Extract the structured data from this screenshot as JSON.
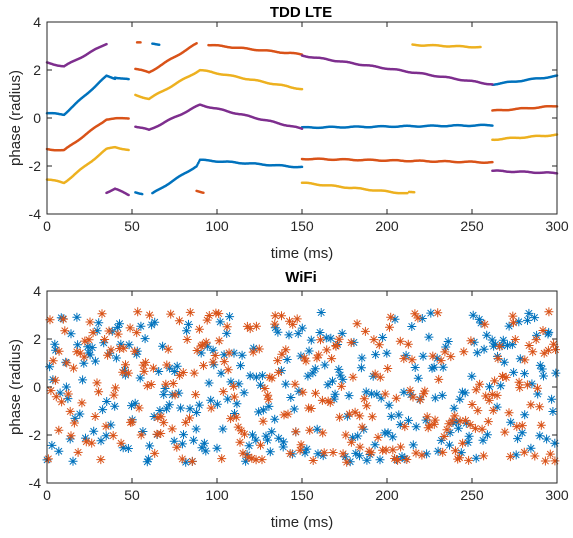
{
  "chart_data": [
    {
      "type": "scatter",
      "title": "TDD LTE",
      "xlabel": "time (ms)",
      "ylabel": "phase (radius)",
      "xlim": [
        0,
        300
      ],
      "ylim": [
        -4,
        4
      ],
      "xticks": [
        0,
        50,
        100,
        150,
        200,
        250,
        300
      ],
      "yticks": [
        -4,
        -2,
        0,
        2,
        4
      ],
      "grid": false,
      "marker": "dot",
      "series": [
        {
          "color": "#0072BD",
          "segments": [
            [
              [
                0,
                0.2
              ],
              [
                10,
                0.15
              ],
              [
                35,
                1.75
              ],
              [
                40,
                1.65
              ]
            ],
            [
              [
                40,
                1.7
              ],
              [
                48,
                1.6
              ]
            ],
            [
              [
                52,
                -3.1
              ],
              [
                56,
                -3.15
              ]
            ],
            [
              [
                62,
                -3.15
              ],
              [
                88,
                -2.0
              ],
              [
                90,
                -1.75
              ],
              [
                150,
                -2.05
              ]
            ],
            [
              [
                150,
                -0.4
              ],
              [
                262,
                -0.3
              ]
            ],
            [
              [
                262,
                1.4
              ],
              [
                300,
                1.75
              ]
            ]
          ]
        },
        {
          "color": "#D95319",
          "segments": [
            [
              [
                0,
                -1.3
              ],
              [
                10,
                -1.35
              ],
              [
                35,
                -0.05
              ],
              [
                48,
                0.0
              ]
            ],
            [
              [
                52,
                2.05
              ],
              [
                60,
                1.9
              ],
              [
                88,
                3.1
              ]
            ],
            [
              [
                88,
                -3.05
              ],
              [
                92,
                -3.1
              ]
            ],
            [
              [
                95,
                3.05
              ],
              [
                150,
                2.65
              ]
            ],
            [
              [
                150,
                -1.7
              ],
              [
                262,
                -1.85
              ]
            ],
            [
              [
                262,
                0.3
              ],
              [
                300,
                0.5
              ]
            ]
          ]
        },
        {
          "color": "#EDB120",
          "segments": [
            [
              [
                0,
                -2.55
              ],
              [
                10,
                -2.7
              ],
              [
                35,
                -1.3
              ],
              [
                40,
                -1.2
              ],
              [
                48,
                -1.35
              ]
            ],
            [
              [
                52,
                0.95
              ],
              [
                60,
                0.8
              ],
              [
                90,
                2.0
              ],
              [
                150,
                1.2
              ]
            ],
            [
              [
                150,
                -2.7
              ],
              [
                212,
                -3.15
              ]
            ],
            [
              [
                213,
                -3.1
              ],
              [
                216,
                -3.1
              ]
            ],
            [
              [
                215,
                3.05
              ],
              [
                255,
                2.95
              ]
            ],
            [
              [
                262,
                -0.9
              ],
              [
                300,
                -0.7
              ]
            ]
          ]
        },
        {
          "color": "#7E2F8E",
          "segments": [
            [
              [
                0,
                2.3
              ],
              [
                10,
                2.15
              ],
              [
                35,
                3.1
              ]
            ],
            [
              [
                35,
                -3.1
              ],
              [
                40,
                -2.95
              ],
              [
                48,
                -3.2
              ]
            ],
            [
              [
                52,
                -0.35
              ],
              [
                60,
                -0.5
              ],
              [
                90,
                0.55
              ],
              [
                150,
                -0.45
              ]
            ],
            [
              [
                150,
                2.6
              ],
              [
                262,
                1.4
              ]
            ],
            [
              [
                262,
                -2.2
              ],
              [
                300,
                -2.3
              ]
            ]
          ]
        }
      ],
      "fragments": [
        {
          "color": "#0072BD",
          "points": [
            [
              62,
              3.1
            ],
            [
              66,
              3.05
            ]
          ]
        },
        {
          "color": "#D95319",
          "points": [
            [
              53,
              3.15
            ],
            [
              55,
              3.15
            ]
          ]
        }
      ]
    },
    {
      "type": "scatter",
      "title": "WiFi",
      "xlabel": "time (ms)",
      "ylabel": "phase (radius)",
      "xlim": [
        0,
        300
      ],
      "ylim": [
        -4,
        4
      ],
      "xticks": [
        0,
        50,
        100,
        150,
        200,
        250,
        300
      ],
      "yticks": [
        -4,
        -2,
        0,
        2,
        4
      ],
      "grid": false,
      "marker": "asterisk",
      "series": [
        {
          "color": "#0072BD",
          "points": 300,
          "phase_range": [
            -3.14,
            3.14
          ],
          "note_distribution": "uniform"
        },
        {
          "color": "#D95319",
          "points": 300,
          "phase_range": [
            -3.14,
            3.14
          ],
          "note_distribution": "uniform"
        }
      ]
    }
  ],
  "colors": {
    "series_1": "#0072BD",
    "series_2": "#D95319",
    "series_3": "#EDB120",
    "series_4": "#7E2F8E"
  }
}
